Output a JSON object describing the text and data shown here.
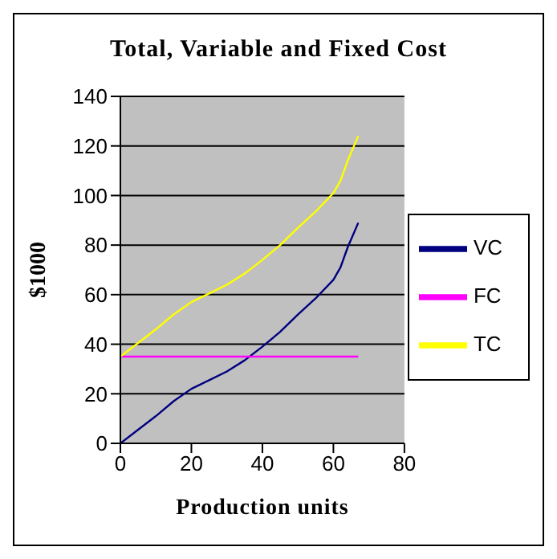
{
  "chart_data": {
    "type": "line",
    "title": "Total, Variable and Fixed Cost",
    "xlabel": "Production units",
    "ylabel": "$1000",
    "x": [
      0,
      5,
      10,
      15,
      20,
      25,
      30,
      35,
      40,
      45,
      50,
      55,
      60,
      62,
      64,
      67
    ],
    "series": [
      {
        "name": "VC",
        "color": "#000080",
        "values": [
          0,
          5.5,
          11,
          17,
          22,
          25.5,
          29,
          33.5,
          39,
          45,
          52,
          58.5,
          66,
          71,
          79,
          89
        ]
      },
      {
        "name": "FC",
        "color": "#ff00ff",
        "values": [
          35,
          35,
          35,
          35,
          35,
          35,
          35,
          35,
          35,
          35,
          35,
          35,
          35,
          35,
          35,
          35
        ]
      },
      {
        "name": "TC",
        "color": "#ffff00",
        "values": [
          35,
          40.5,
          46,
          52,
          57,
          60.5,
          64,
          68.5,
          74,
          80,
          87,
          93.5,
          101,
          106,
          114,
          124
        ]
      }
    ],
    "xlim": [
      0,
      80
    ],
    "xticks": [
      0,
      20,
      40,
      60,
      80
    ],
    "ylim": [
      0,
      140
    ],
    "yticks": [
      0,
      20,
      40,
      60,
      80,
      100,
      120,
      140
    ],
    "grid": "y",
    "legend": "right",
    "marker": "none",
    "line_style": "solid"
  }
}
